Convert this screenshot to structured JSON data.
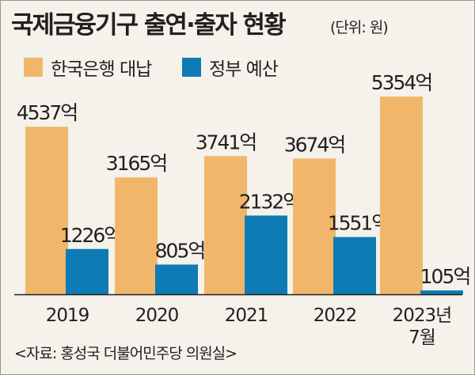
{
  "title": "국제금융기구 출연·출자 현황",
  "unit": "(단위: 원)",
  "source": "<자료: 홍성국 더불어민주당 의원실>",
  "colors": {
    "korea_bank": "#f0b76a",
    "government": "#0e7bb4",
    "axis": "#231f20"
  },
  "chart_data": {
    "type": "bar",
    "title": "국제금융기구 출연·출자 현황",
    "unit": "(단위: 원)",
    "categories": [
      "2019",
      "2020",
      "2021",
      "2022",
      "2023년\n7월"
    ],
    "series": [
      {
        "name": "한국은행 대납",
        "color": "#f0b76a",
        "values": [
          4537,
          3165,
          3741,
          3674,
          5354
        ],
        "labels": [
          "4537억",
          "3165억",
          "3741억",
          "3674억",
          "5354억"
        ]
      },
      {
        "name": "정부 예산",
        "color": "#0e7bb4",
        "values": [
          1226,
          805,
          2132,
          1551,
          105
        ],
        "labels": [
          "1226억",
          "805억",
          "2132억",
          "1551억",
          "105억"
        ]
      }
    ],
    "legend": "top-left",
    "grid": false
  }
}
